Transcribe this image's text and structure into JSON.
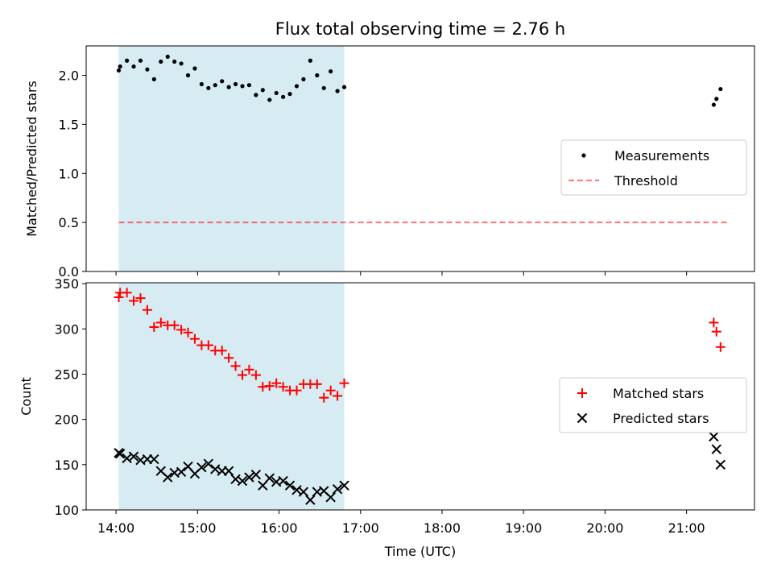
{
  "title": "Flux total observing time = 2.76 h",
  "xlabel": "Time (UTC)",
  "x_ticks": [
    "14:00",
    "15:00",
    "16:00",
    "17:00",
    "18:00",
    "19:00",
    "20:00",
    "21:00"
  ],
  "colors": {
    "span": "#add8e6",
    "threshold": "#ff0000",
    "matched": "#ff0000",
    "predicted": "#000000",
    "measurement": "#000000"
  },
  "chart_data": [
    {
      "type": "scatter",
      "ylabel": "Matched/Predicted stars",
      "xlim": [
        "13:38",
        "21:50"
      ],
      "ylim": [
        0,
        2.3
      ],
      "y_ticks": [
        "0.0",
        "0.5",
        "1.0",
        "1.5",
        "2.0"
      ],
      "highlight_span": [
        "14:02",
        "16:48"
      ],
      "legend": {
        "location": "center-right",
        "entries": [
          "Measurements",
          "Threshold"
        ]
      },
      "threshold": {
        "name": "Threshold",
        "y": 0.5,
        "x": [
          "14:02",
          "21:30"
        ],
        "style": "dashed"
      },
      "series": [
        {
          "name": "Measurements",
          "x": [
            "14:02",
            "14:03",
            "14:08",
            "14:13",
            "14:18",
            "14:23",
            "14:28",
            "14:33",
            "14:38",
            "14:43",
            "14:48",
            "14:53",
            "14:58",
            "15:03",
            "15:08",
            "15:13",
            "15:18",
            "15:23",
            "15:28",
            "15:33",
            "15:38",
            "15:43",
            "15:48",
            "15:53",
            "15:58",
            "16:03",
            "16:08",
            "16:13",
            "16:18",
            "16:23",
            "16:28",
            "16:33",
            "16:38",
            "16:43",
            "16:48",
            "21:20",
            "21:22",
            "21:25"
          ],
          "y": [
            2.05,
            2.09,
            2.15,
            2.09,
            2.15,
            2.06,
            1.96,
            2.14,
            2.19,
            2.14,
            2.12,
            2.0,
            2.07,
            1.91,
            1.87,
            1.9,
            1.94,
            1.88,
            1.91,
            1.89,
            1.9,
            1.8,
            1.85,
            1.75,
            1.82,
            1.78,
            1.81,
            1.89,
            1.96,
            2.15,
            2.0,
            1.87,
            2.04,
            1.84,
            1.88,
            1.7,
            1.76,
            1.86
          ]
        }
      ]
    },
    {
      "type": "scatter",
      "ylabel": "Count",
      "xlim": [
        "13:38",
        "21:50"
      ],
      "ylim": [
        100,
        351
      ],
      "y_ticks": [
        "100",
        "150",
        "200",
        "250",
        "300",
        "350"
      ],
      "highlight_span": [
        "14:02",
        "16:48"
      ],
      "legend": {
        "location": "center-right",
        "entries": [
          "Matched stars",
          "Predicted stars"
        ]
      },
      "series": [
        {
          "name": "Matched stars",
          "marker": "+",
          "x": [
            "14:02",
            "14:03",
            "14:08",
            "14:13",
            "14:18",
            "14:23",
            "14:28",
            "14:33",
            "14:38",
            "14:43",
            "14:48",
            "14:53",
            "14:58",
            "15:03",
            "15:08",
            "15:13",
            "15:18",
            "15:23",
            "15:28",
            "15:33",
            "15:38",
            "15:43",
            "15:48",
            "15:53",
            "15:58",
            "16:03",
            "16:08",
            "16:13",
            "16:18",
            "16:23",
            "16:28",
            "16:33",
            "16:38",
            "16:43",
            "16:48",
            "21:20",
            "21:22",
            "21:25"
          ],
          "y": [
            335,
            340,
            340,
            331,
            334,
            321,
            302,
            307,
            304,
            304,
            299,
            296,
            289,
            282,
            282,
            276,
            276,
            268,
            259,
            249,
            255,
            249,
            236,
            237,
            240,
            236,
            232,
            232,
            239,
            239,
            239,
            224,
            232,
            226,
            240,
            307,
            297,
            280
          ]
        },
        {
          "name": "Predicted stars",
          "marker": "x",
          "x": [
            "14:02",
            "14:03",
            "14:08",
            "14:13",
            "14:18",
            "14:23",
            "14:28",
            "14:33",
            "14:38",
            "14:43",
            "14:48",
            "14:53",
            "14:58",
            "15:03",
            "15:08",
            "15:13",
            "15:18",
            "15:23",
            "15:28",
            "15:33",
            "15:38",
            "15:43",
            "15:48",
            "15:53",
            "15:58",
            "16:03",
            "16:08",
            "16:13",
            "16:18",
            "16:23",
            "16:28",
            "16:33",
            "16:38",
            "16:43",
            "16:48",
            "21:20",
            "21:22",
            "21:25"
          ],
          "y": [
            163,
            162,
            157,
            159,
            155,
            156,
            156,
            143,
            136,
            141,
            142,
            148,
            140,
            147,
            151,
            145,
            143,
            143,
            134,
            132,
            136,
            139,
            127,
            135,
            131,
            132,
            127,
            122,
            120,
            111,
            120,
            121,
            114,
            123,
            127,
            181,
            167,
            150
          ]
        }
      ]
    }
  ]
}
